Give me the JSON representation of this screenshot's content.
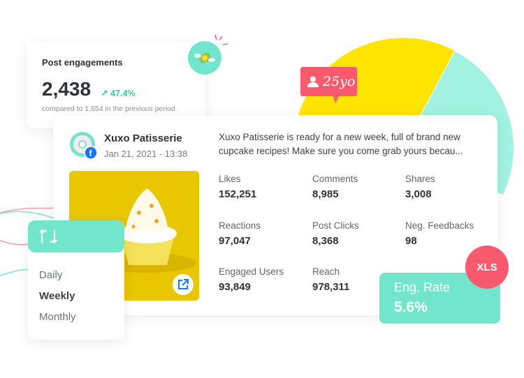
{
  "colors": {
    "accent_teal": "#72e6cc",
    "accent_red": "#fb5a6e",
    "pie_yellow": "#ffe400",
    "pie_teal": "#a1f2e0",
    "positive_green": "#2ecfa5"
  },
  "engagements": {
    "title": "Post engagements",
    "value": "2,438",
    "change": "47.4%",
    "comparison": "compared to 1,654 in the previous period",
    "icon": "flying-money-icon"
  },
  "age_badge": {
    "label": "25yo",
    "icon": "user-icon"
  },
  "post": {
    "page_name": "Xuxo Patisserie",
    "date": "Jan 21, 2021 - 13:38",
    "text": "Xuxo Patisserie is ready for a new week, full of brand new cupcake recipes! Make sure you come grab yours becau...",
    "network_icon": "facebook-icon",
    "metrics": [
      {
        "label": "Likes",
        "value": "152,251"
      },
      {
        "label": "Comments",
        "value": "8,985"
      },
      {
        "label": "Shares",
        "value": "3,008"
      },
      {
        "label": "Reactions",
        "value": "97,047"
      },
      {
        "label": "Post Clicks",
        "value": "8,368"
      },
      {
        "label": "Neg. Feedbacks",
        "value": "98"
      },
      {
        "label": "Engaged Users",
        "value": "93,849"
      },
      {
        "label": "Reach",
        "value": "978,311"
      }
    ]
  },
  "period_menu": {
    "icon": "repeat-icon",
    "items": [
      "Daily",
      "Weekly",
      "Monthly"
    ],
    "selected": "Weekly"
  },
  "eng_rate": {
    "label": "Eng. Rate",
    "value": "5.6%"
  },
  "export": {
    "label": "XLS"
  }
}
